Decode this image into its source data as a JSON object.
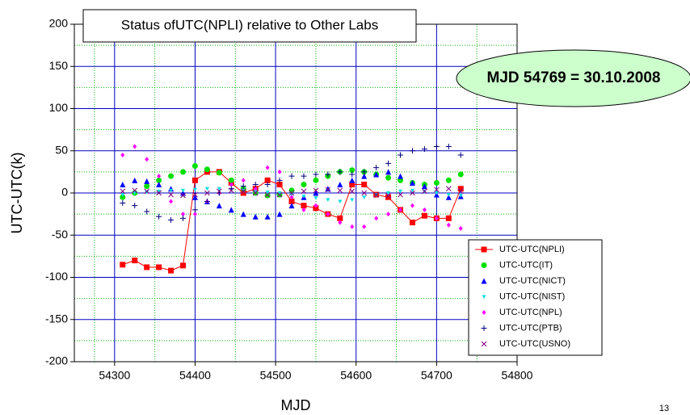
{
  "chart_data": {
    "type": "scatter",
    "title": "Status ofUTC(NPLI) relative to Other Labs",
    "annotation": "MJD 54769 = 30.10.2008",
    "page_number": "13",
    "x_label": "MJD",
    "y_label": "UTC-UTC(k)",
    "xlim": [
      54250,
      54800
    ],
    "ylim": [
      -200,
      200
    ],
    "xticks": [
      54300,
      54400,
      54500,
      54600,
      54700,
      54800
    ],
    "yticks": [
      -200,
      -150,
      -100,
      -50,
      0,
      50,
      100,
      150,
      200
    ],
    "grid": true,
    "minor_grid": true,
    "legend": "lower right",
    "x": [
      54310,
      54325,
      54340,
      54355,
      54370,
      54385,
      54400,
      54415,
      54430,
      54445,
      54460,
      54475,
      54490,
      54505,
      54520,
      54535,
      54550,
      54565,
      54580,
      54595,
      54610,
      54625,
      54640,
      54655,
      54670,
      54685,
      54700,
      54715,
      54730
    ],
    "series": [
      {
        "name": "UTC-UTC(NPLI)",
        "color": "#ff0000",
        "marker": "square",
        "line": true,
        "values": [
          -85,
          -80,
          -88,
          -88,
          -92,
          -86,
          15,
          25,
          25,
          12,
          0,
          5,
          15,
          10,
          -10,
          -15,
          -18,
          -25,
          -30,
          10,
          10,
          -2,
          -5,
          -20,
          -35,
          -27,
          -30,
          -30,
          5
        ]
      },
      {
        "name": "UTC-UTC(IT)",
        "color": "#00e000",
        "marker": "circle",
        "line": false,
        "values": [
          -5,
          0,
          8,
          15,
          20,
          25,
          32,
          28,
          24,
          15,
          5,
          0,
          -3,
          -2,
          3,
          10,
          15,
          20,
          25,
          27,
          25,
          22,
          18,
          15,
          12,
          10,
          12,
          15,
          22
        ]
      },
      {
        "name": "UTC-UTC(NICT)",
        "color": "#0000ff",
        "marker": "triangle",
        "line": false,
        "values": [
          10,
          15,
          14,
          10,
          5,
          0,
          -5,
          -10,
          -15,
          -20,
          -25,
          -28,
          -28,
          -25,
          -15,
          -5,
          0,
          5,
          10,
          15,
          20,
          22,
          25,
          20,
          12,
          8,
          -2,
          -5,
          -4
        ]
      },
      {
        "name": "UTC-UTC(NIST)",
        "color": "#00e0e0",
        "marker": "triangle-down",
        "line": false,
        "values": [
          -2,
          0,
          1,
          2,
          3,
          3,
          4,
          5,
          5,
          4,
          3,
          2,
          1,
          0,
          -2,
          -4,
          -6,
          -8,
          -10,
          -8,
          -5,
          -2,
          0,
          2,
          3,
          2,
          0,
          -2,
          -3
        ]
      },
      {
        "name": "UTC-UTC(NPL)",
        "color": "#ff00ff",
        "marker": "diamond",
        "line": false,
        "values": [
          45,
          55,
          40,
          20,
          -10,
          -25,
          -25,
          -10,
          0,
          10,
          15,
          5,
          30,
          25,
          -5,
          -20,
          -15,
          -25,
          -35,
          -40,
          -40,
          -30,
          -25,
          -20,
          -15,
          -20,
          -30,
          -38,
          -42
        ]
      },
      {
        "name": "UTC-UTC(PTB)",
        "color": "#000080",
        "marker": "plus",
        "line": false,
        "values": [
          -12,
          -15,
          -22,
          -28,
          -32,
          -30,
          -20,
          -10,
          0,
          5,
          8,
          10,
          10,
          15,
          20,
          20,
          22,
          22,
          25,
          22,
          25,
          30,
          35,
          45,
          50,
          52,
          55,
          55,
          45
        ]
      },
      {
        "name": "UTC-UTC(USNO)",
        "color": "#800080",
        "marker": "cross",
        "line": false,
        "values": [
          2,
          3,
          2,
          0,
          -2,
          -3,
          -2,
          0,
          2,
          3,
          2,
          0,
          -2,
          -2,
          0,
          2,
          3,
          4,
          3,
          2,
          0,
          -2,
          -3,
          -2,
          0,
          2,
          4,
          5,
          2
        ]
      }
    ]
  }
}
